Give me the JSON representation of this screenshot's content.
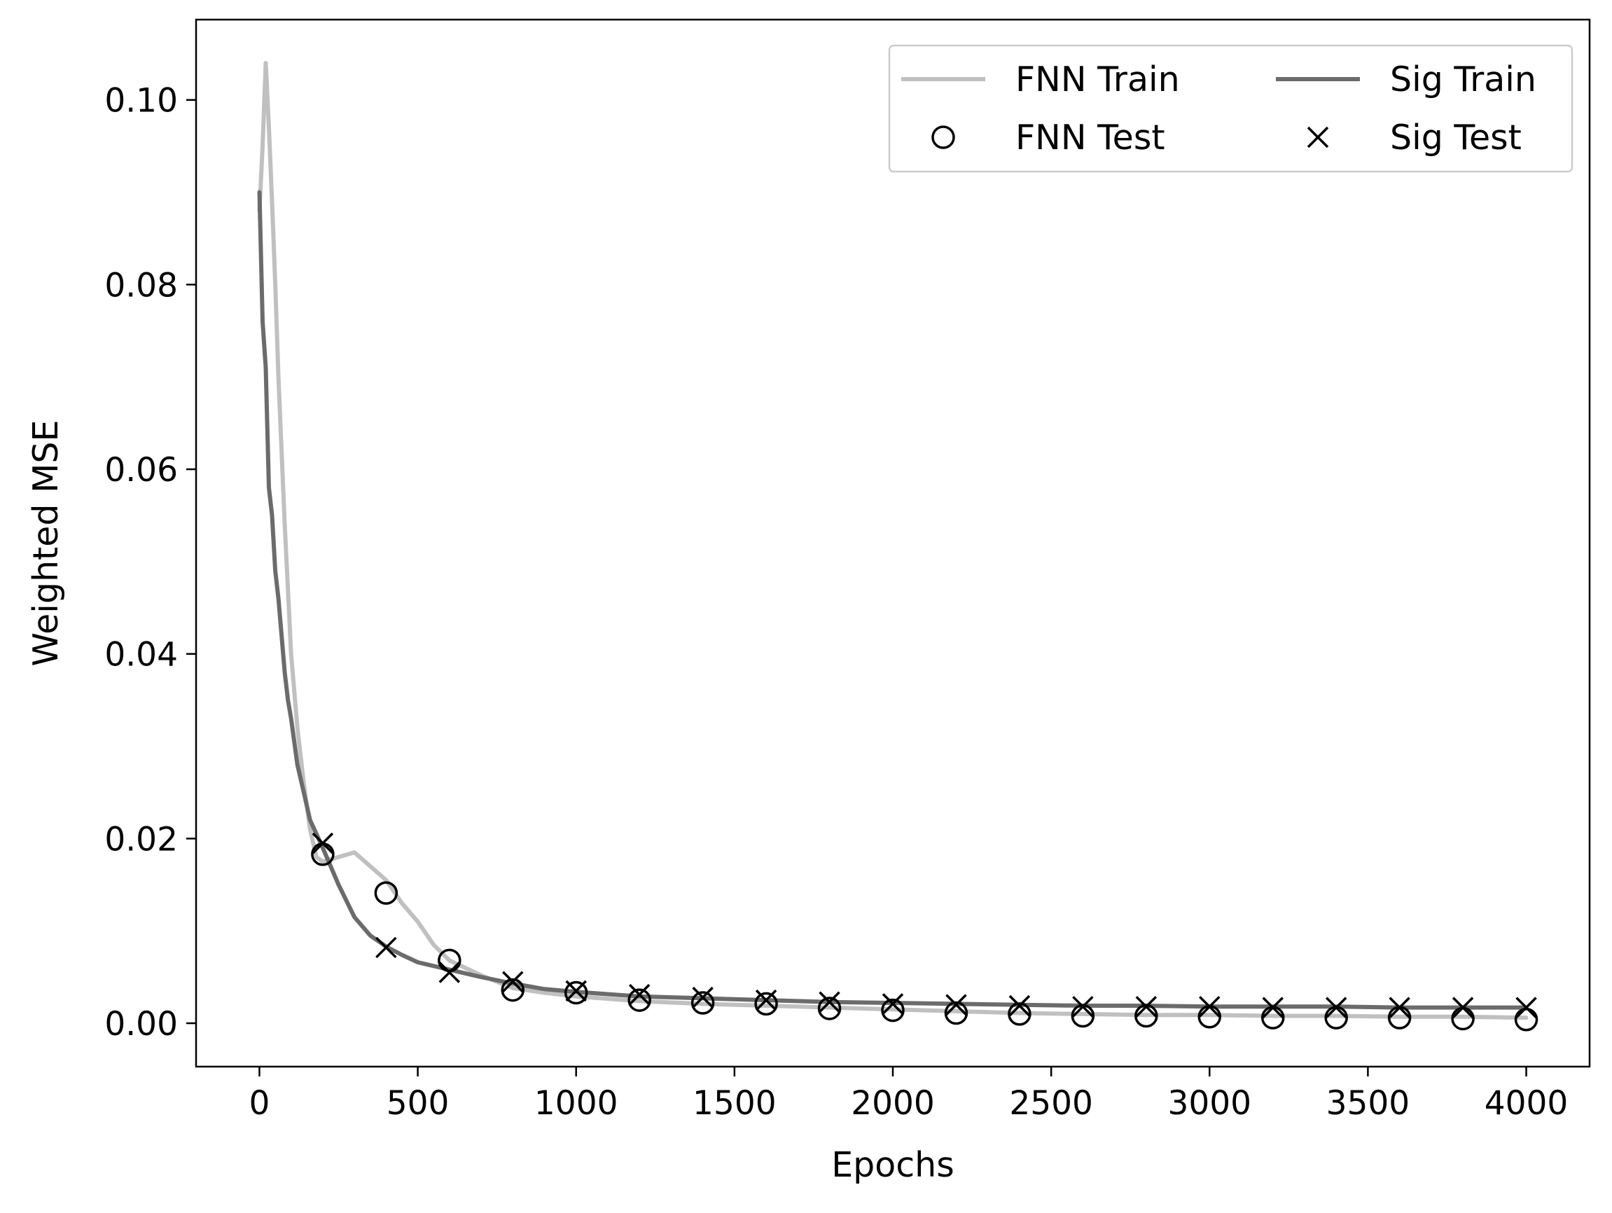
{
  "chart_data": {
    "type": "line",
    "title": "",
    "xlabel": "Epochs",
    "ylabel": "Weighted MSE",
    "xlim": [
      -200,
      4200
    ],
    "ylim": [
      -0.0047,
      0.1087
    ],
    "xticks": [
      0,
      500,
      1000,
      1500,
      2000,
      2500,
      3000,
      3500,
      4000
    ],
    "xtick_labels": [
      "0",
      "500",
      "1000",
      "1500",
      "2000",
      "2500",
      "3000",
      "3500",
      "4000"
    ],
    "yticks": [
      0.0,
      0.02,
      0.04,
      0.06,
      0.08,
      0.1
    ],
    "ytick_labels": [
      "0.00",
      "0.02",
      "0.04",
      "0.06",
      "0.08",
      "0.10"
    ],
    "grid": false,
    "legend_position": "top-right",
    "legend_columns": 2,
    "series": [
      {
        "name": "FNN Train",
        "kind": "line",
        "color": "#c0c0c0",
        "x": [
          0,
          10,
          20,
          30,
          40,
          50,
          60,
          70,
          80,
          90,
          100,
          120,
          140,
          160,
          180,
          200,
          250,
          300,
          350,
          400,
          450,
          500,
          550,
          600,
          700,
          800,
          900,
          1000,
          1200,
          1400,
          1600,
          1800,
          2000,
          2200,
          2400,
          2600,
          2800,
          3000,
          3200,
          3400,
          3600,
          3800,
          4000
        ],
        "y": [
          0.088,
          0.095,
          0.104,
          0.097,
          0.089,
          0.08,
          0.07,
          0.062,
          0.054,
          0.047,
          0.04,
          0.032,
          0.026,
          0.021,
          0.018,
          0.0175,
          0.018,
          0.0185,
          0.017,
          0.0155,
          0.013,
          0.011,
          0.0085,
          0.0068,
          0.0052,
          0.0038,
          0.0033,
          0.0029,
          0.0024,
          0.0021,
          0.0019,
          0.0017,
          0.0015,
          0.0013,
          0.0011,
          0.001,
          0.0009,
          0.0009,
          0.0008,
          0.0008,
          0.0007,
          0.0007,
          0.0006
        ]
      },
      {
        "name": "FNN Test",
        "kind": "marker",
        "marker": "circle",
        "x": [
          200,
          400,
          600,
          800,
          1000,
          1200,
          1400,
          1600,
          1800,
          2000,
          2200,
          2400,
          2600,
          2800,
          3000,
          3200,
          3400,
          3600,
          3800,
          4000
        ],
        "y": [
          0.0183,
          0.0141,
          0.0068,
          0.0036,
          0.0033,
          0.0025,
          0.0022,
          0.0021,
          0.0016,
          0.0014,
          0.0011,
          0.001,
          0.0008,
          0.0008,
          0.0007,
          0.0006,
          0.0006,
          0.0006,
          0.0005,
          0.0004
        ]
      },
      {
        "name": "Sig Train",
        "kind": "line",
        "color": "#6b6b6b",
        "x": [
          0,
          10,
          20,
          30,
          40,
          50,
          60,
          70,
          80,
          90,
          100,
          120,
          140,
          160,
          180,
          200,
          250,
          300,
          350,
          400,
          450,
          500,
          600,
          700,
          800,
          900,
          1000,
          1200,
          1400,
          1600,
          1800,
          2000,
          2200,
          2400,
          2600,
          2800,
          3000,
          3200,
          3400,
          3600,
          3800,
          4000
        ],
        "y": [
          0.09,
          0.076,
          0.071,
          0.058,
          0.055,
          0.049,
          0.046,
          0.042,
          0.038,
          0.035,
          0.033,
          0.028,
          0.025,
          0.022,
          0.0205,
          0.019,
          0.015,
          0.0115,
          0.0095,
          0.0083,
          0.0074,
          0.0066,
          0.0058,
          0.005,
          0.0043,
          0.0037,
          0.0034,
          0.0029,
          0.0027,
          0.0025,
          0.0023,
          0.0022,
          0.0021,
          0.002,
          0.0019,
          0.0019,
          0.0018,
          0.0018,
          0.0018,
          0.0017,
          0.0017,
          0.0017
        ]
      },
      {
        "name": "Sig Test",
        "kind": "marker",
        "marker": "x",
        "x": [
          200,
          400,
          600,
          800,
          1000,
          1200,
          1400,
          1600,
          1800,
          2000,
          2200,
          2400,
          2600,
          2800,
          3000,
          3200,
          3400,
          3600,
          3800,
          4000
        ],
        "y": [
          0.0195,
          0.0082,
          0.0055,
          0.0045,
          0.0035,
          0.0031,
          0.0028,
          0.0025,
          0.0023,
          0.0021,
          0.002,
          0.0019,
          0.0018,
          0.0018,
          0.0018,
          0.0017,
          0.0017,
          0.0017,
          0.0017,
          0.0017
        ]
      }
    ]
  }
}
